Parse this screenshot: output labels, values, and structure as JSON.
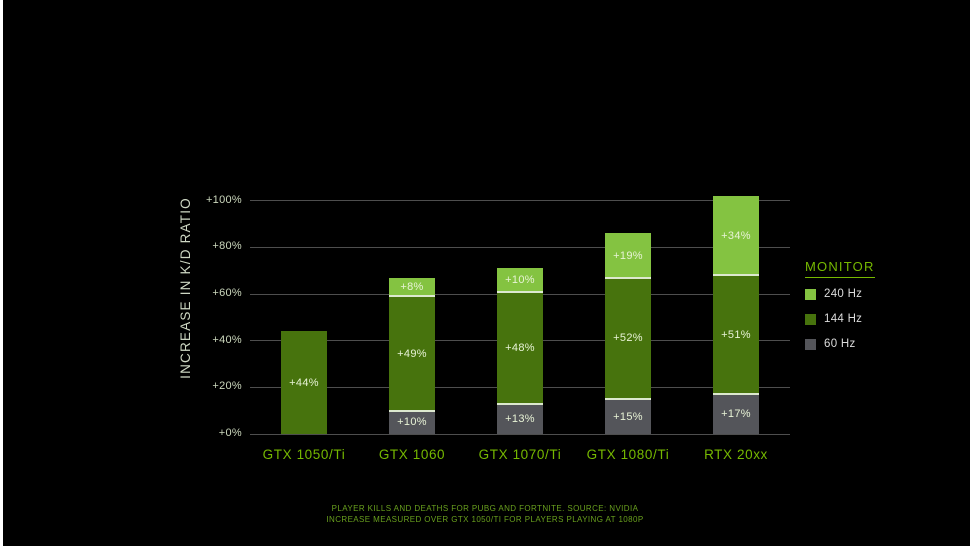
{
  "colors": {
    "accent_green": "#76b900",
    "background": "#000000"
  },
  "chart_data": {
    "type": "bar",
    "stacked": true,
    "title": "",
    "xlabel": "",
    "ylabel": "INCREASE IN K/D RATIO",
    "ylim": [
      0,
      105
    ],
    "grid": true,
    "legend_position": "right",
    "categories": [
      "GTX 1050/Ti",
      "GTX 1060",
      "GTX 1070/Ti",
      "GTX 1080/Ti",
      "RTX 20xx"
    ],
    "series": [
      {
        "name": "60 Hz",
        "color": "#54555a",
        "values": [
          0,
          10,
          13,
          15,
          17
        ],
        "labels": [
          "",
          "+10%",
          "+13%",
          "+15%",
          "+17%"
        ]
      },
      {
        "name": "144 Hz",
        "color": "#47730d",
        "values": [
          44,
          49,
          48,
          52,
          51
        ],
        "labels": [
          "+44%",
          "+49%",
          "+48%",
          "+52%",
          "+51%"
        ]
      },
      {
        "name": "240 Hz",
        "color": "#84c341",
        "values": [
          0,
          8,
          10,
          19,
          34
        ],
        "labels": [
          "",
          "+8%",
          "+10%",
          "+19%",
          "+34%"
        ]
      }
    ],
    "yticks": [
      {
        "value": 0,
        "label": "+0%"
      },
      {
        "value": 20,
        "label": "+20%"
      },
      {
        "value": 40,
        "label": "+40%"
      },
      {
        "value": 60,
        "label": "+60%"
      },
      {
        "value": 80,
        "label": "+80%"
      },
      {
        "value": 100,
        "label": "+100%"
      }
    ]
  },
  "legend": {
    "title": "MONITOR",
    "items": [
      {
        "label": "240 Hz",
        "color": "#84c341"
      },
      {
        "label": "144 Hz",
        "color": "#47730d"
      },
      {
        "label": "60 Hz",
        "color": "#54555a"
      }
    ]
  },
  "footer": {
    "line1": "PLAYER KILLS AND DEATHS FOR PUBG AND FORTNITE. SOURCE: NVIDIA",
    "line2": "INCREASE MEASURED OVER GTX 1050/TI FOR PLAYERS PLAYING AT 1080P"
  }
}
